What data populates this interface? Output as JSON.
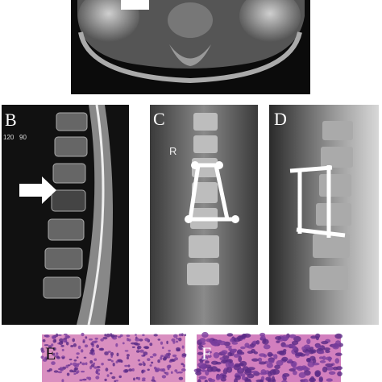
{
  "panels": [
    {
      "label": "B",
      "annotations": [
        "120",
        "90"
      ]
    },
    {
      "label": "C",
      "annotations": [
        "R"
      ]
    },
    {
      "label": "D",
      "annotations": []
    },
    {
      "label": "E",
      "annotations": []
    },
    {
      "label": "F",
      "annotations": []
    }
  ]
}
